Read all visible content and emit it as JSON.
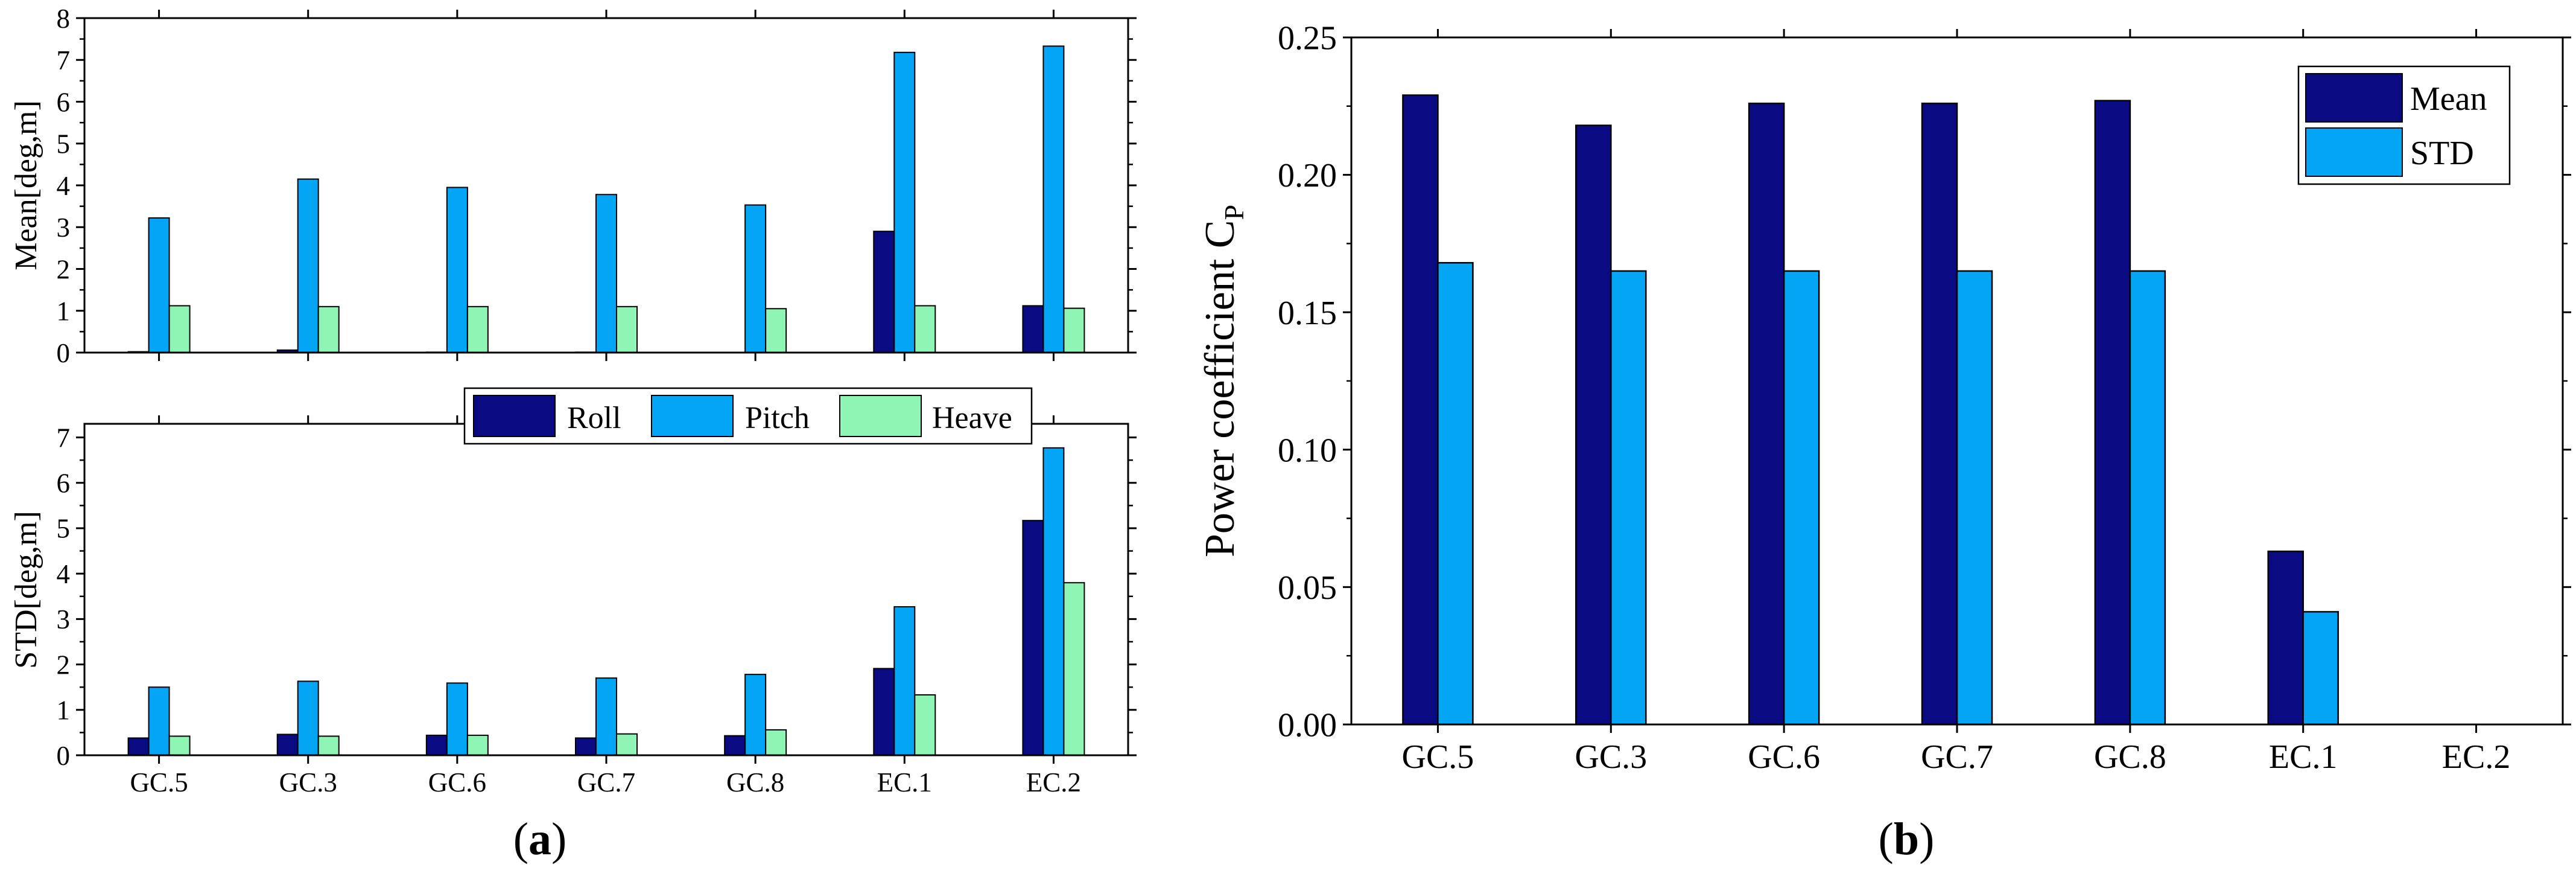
{
  "colors": {
    "roll": "#0a0a82",
    "pitch": "#05a5f5",
    "heave": "#8ff5b4",
    "mean": "#0a0a82",
    "std": "#05a5f5"
  },
  "panel_labels": {
    "a": "(a)",
    "a_letter": "a",
    "b": "(b)",
    "b_letter": "b"
  },
  "chart_data": [
    {
      "id": "a-top",
      "type": "bar",
      "categories": [
        "GC.5",
        "GC.3",
        "GC.6",
        "GC.7",
        "GC.8",
        "EC.1",
        "EC.2"
      ],
      "series": [
        {
          "name": "Roll",
          "values": [
            0.02,
            0.06,
            0.01,
            0.01,
            0.0,
            2.9,
            1.12
          ]
        },
        {
          "name": "Pitch",
          "values": [
            3.22,
            4.15,
            3.95,
            3.78,
            3.53,
            7.18,
            7.33
          ]
        },
        {
          "name": "Heave",
          "values": [
            1.12,
            1.1,
            1.1,
            1.1,
            1.05,
            1.12,
            1.06
          ]
        }
      ],
      "xlabel": "",
      "ylabel": "Mean[deg,m]",
      "ylim": [
        0,
        8
      ],
      "yticks": [
        "0",
        "1",
        "2",
        "3",
        "4",
        "5",
        "6",
        "7",
        "8"
      ]
    },
    {
      "id": "a-bottom",
      "type": "bar",
      "categories": [
        "GC.5",
        "GC.3",
        "GC.6",
        "GC.7",
        "GC.8",
        "EC.1",
        "EC.2"
      ],
      "series": [
        {
          "name": "Roll",
          "values": [
            0.38,
            0.46,
            0.44,
            0.38,
            0.43,
            1.91,
            5.17
          ]
        },
        {
          "name": "Pitch",
          "values": [
            1.5,
            1.63,
            1.59,
            1.7,
            1.78,
            3.27,
            6.77
          ]
        },
        {
          "name": "Heave",
          "values": [
            0.42,
            0.42,
            0.44,
            0.47,
            0.56,
            1.33,
            3.8
          ]
        }
      ],
      "xlabel": "",
      "ylabel": "STD[deg,m]",
      "ylim": [
        0,
        7.3
      ],
      "yticks": [
        "0",
        "1",
        "2",
        "3",
        "4",
        "5",
        "6",
        "7"
      ],
      "legend": [
        "Roll",
        "Pitch",
        "Heave"
      ],
      "legend_position": "top"
    },
    {
      "id": "b",
      "type": "bar",
      "categories": [
        "GC.5",
        "GC.3",
        "GC.6",
        "GC.7",
        "GC.8",
        "EC.1",
        "EC.2"
      ],
      "series": [
        {
          "name": "Mean",
          "values": [
            0.229,
            0.218,
            0.226,
            0.226,
            0.227,
            0.063,
            0.0
          ]
        },
        {
          "name": "STD",
          "values": [
            0.168,
            0.165,
            0.165,
            0.165,
            0.165,
            0.041,
            0.0
          ]
        }
      ],
      "xlabel": "",
      "ylabel": "Power coefficient C",
      "ylabel_sub": "P",
      "ylim": [
        0,
        0.25
      ],
      "yticks": [
        "0.00",
        "0.05",
        "0.10",
        "0.15",
        "0.20",
        "0.25"
      ],
      "legend": [
        "Mean",
        "STD"
      ],
      "legend_position": "top-right"
    }
  ]
}
